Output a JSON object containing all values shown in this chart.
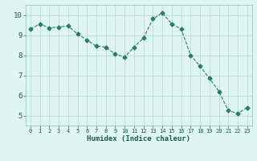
{
  "x": [
    0,
    1,
    2,
    3,
    4,
    5,
    6,
    7,
    8,
    9,
    10,
    11,
    12,
    13,
    14,
    15,
    16,
    17,
    18,
    19,
    20,
    21,
    22,
    23
  ],
  "y": [
    9.3,
    9.55,
    9.35,
    9.4,
    9.45,
    9.05,
    8.75,
    8.45,
    8.4,
    8.05,
    7.9,
    8.4,
    8.85,
    9.8,
    10.1,
    9.55,
    9.3,
    8.0,
    7.45,
    6.85,
    6.2,
    5.25,
    5.1,
    5.4
  ],
  "line_color": "#2a7a6e",
  "marker": "D",
  "marker_size": 2.5,
  "bg_color": "#dff5f0",
  "grid_color": "#b0d8d0",
  "grid_color_major": "#c0c0c0",
  "xlabel": "Humidex (Indice chaleur)",
  "ylim": [
    4.5,
    10.5
  ],
  "xlim": [
    -0.5,
    23.5
  ],
  "yticks": [
    5,
    6,
    7,
    8,
    9,
    10
  ],
  "xticks": [
    0,
    1,
    2,
    3,
    4,
    5,
    6,
    7,
    8,
    9,
    10,
    11,
    12,
    13,
    14,
    15,
    16,
    17,
    18,
    19,
    20,
    21,
    22,
    23
  ]
}
